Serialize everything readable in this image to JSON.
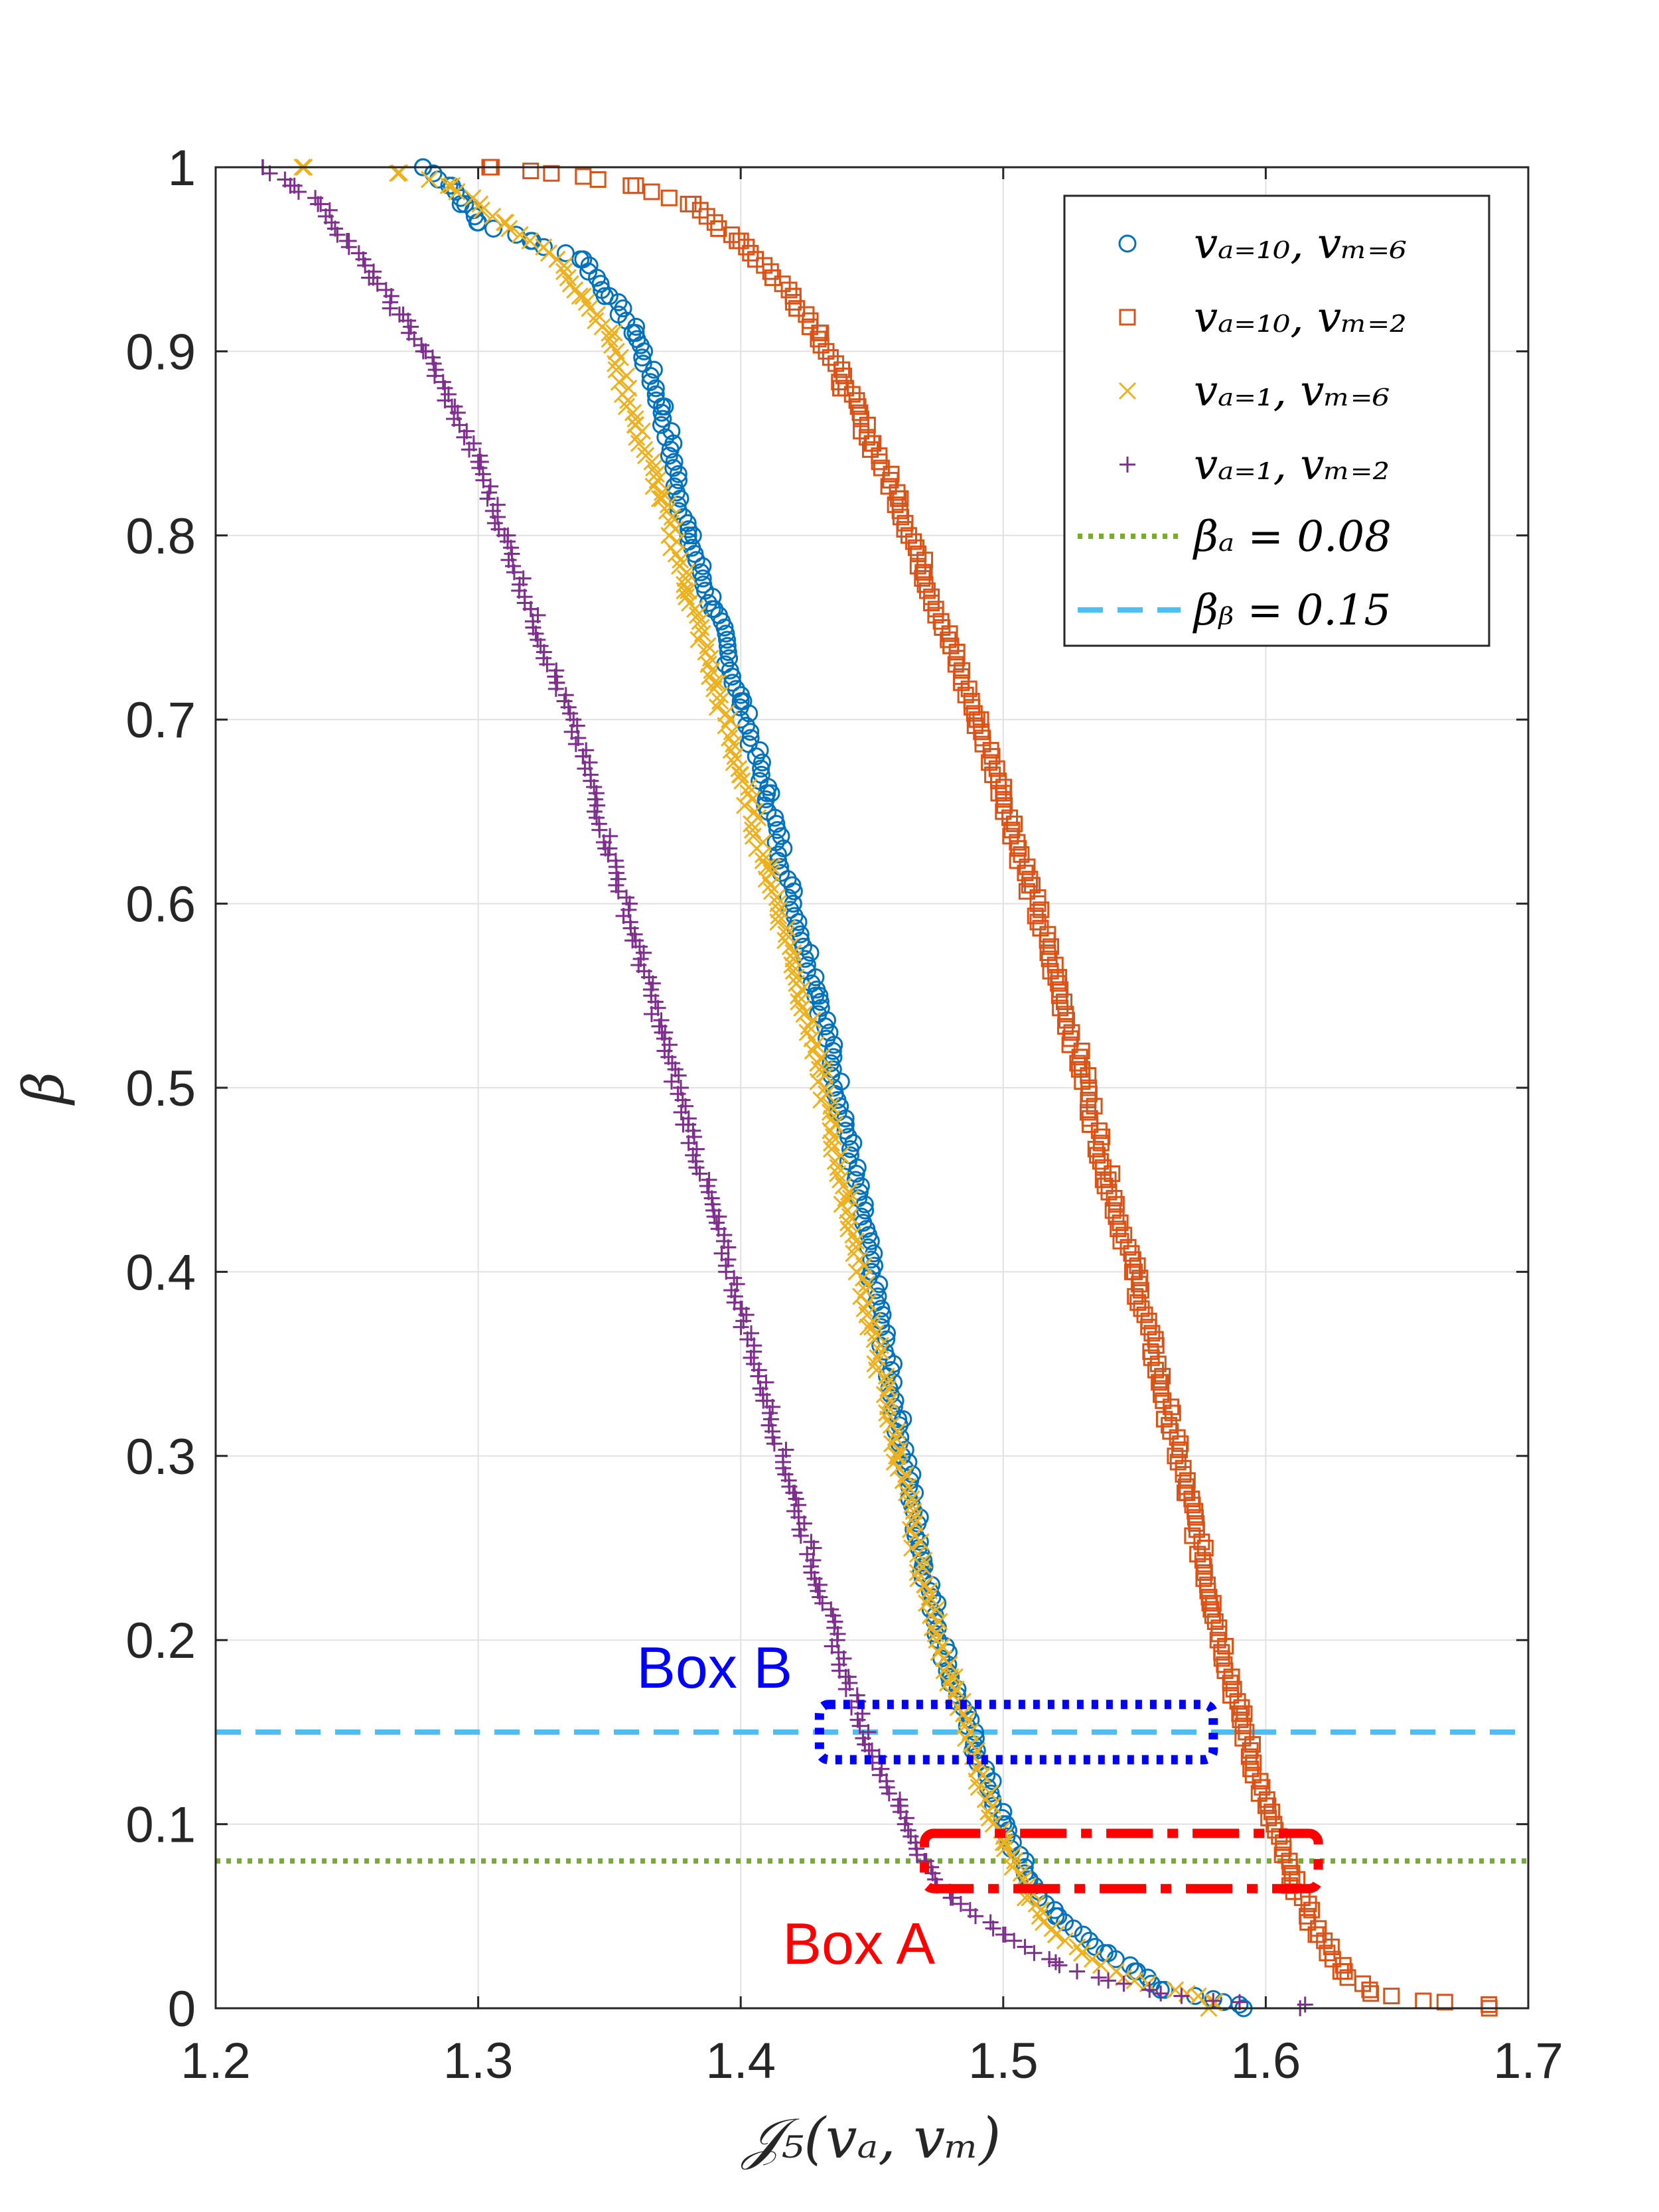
{
  "chart_data": {
    "type": "scatter",
    "title": "",
    "xlabel": "𝒥₅(vₐ, vₘ)",
    "ylabel": "β",
    "xlim": [
      1.2,
      1.7
    ],
    "ylim": [
      0,
      1
    ],
    "x_ticks": [
      "1.2",
      "1.3",
      "1.4",
      "1.5",
      "1.6",
      "1.7"
    ],
    "y_ticks": [
      "0",
      "0.1",
      "0.2",
      "0.3",
      "0.4",
      "0.5",
      "0.6",
      "0.7",
      "0.8",
      "0.9",
      "1"
    ],
    "grid": true,
    "legend_position": "top-right",
    "series": [
      {
        "name": "v_{a=10}, v_{m=6}",
        "label": "𝑣ₐ₌₁₀, 𝑣ₘ₌₆",
        "marker": "circle",
        "color": "#0072BD",
        "curve": [
          [
            1.279,
            1.0
          ],
          [
            1.29,
            0.99
          ],
          [
            1.295,
            0.98
          ],
          [
            1.3,
            0.97
          ],
          [
            1.32,
            0.96
          ],
          [
            1.34,
            0.95
          ],
          [
            1.35,
            0.93
          ],
          [
            1.36,
            0.91
          ],
          [
            1.37,
            0.87
          ],
          [
            1.38,
            0.8
          ],
          [
            1.39,
            0.76
          ],
          [
            1.4,
            0.71
          ],
          [
            1.41,
            0.66
          ],
          [
            1.42,
            0.6
          ],
          [
            1.43,
            0.55
          ],
          [
            1.44,
            0.48
          ],
          [
            1.45,
            0.4
          ],
          [
            1.46,
            0.32
          ],
          [
            1.47,
            0.24
          ],
          [
            1.48,
            0.18
          ],
          [
            1.49,
            0.14
          ],
          [
            1.5,
            0.1
          ],
          [
            1.51,
            0.07
          ],
          [
            1.52,
            0.05
          ],
          [
            1.54,
            0.03
          ],
          [
            1.55,
            0.02
          ],
          [
            1.56,
            0.01
          ],
          [
            1.58,
            0.005
          ],
          [
            1.59,
            0.002
          ]
        ]
      },
      {
        "name": "v_{a=10}, v_{m=2}",
        "label": "𝑣ₐ₌₁₀, 𝑣ₘ₌₂",
        "marker": "square",
        "color": "#D95319",
        "curve": [
          [
            1.305,
            1.0
          ],
          [
            1.32,
            0.998
          ],
          [
            1.34,
            0.995
          ],
          [
            1.36,
            0.99
          ],
          [
            1.38,
            0.98
          ],
          [
            1.4,
            0.96
          ],
          [
            1.42,
            0.93
          ],
          [
            1.43,
            0.91
          ],
          [
            1.44,
            0.88
          ],
          [
            1.45,
            0.85
          ],
          [
            1.46,
            0.82
          ],
          [
            1.47,
            0.78
          ],
          [
            1.48,
            0.74
          ],
          [
            1.49,
            0.7
          ],
          [
            1.5,
            0.66
          ],
          [
            1.51,
            0.61
          ],
          [
            1.52,
            0.56
          ],
          [
            1.53,
            0.51
          ],
          [
            1.54,
            0.45
          ],
          [
            1.55,
            0.4
          ],
          [
            1.56,
            0.34
          ],
          [
            1.57,
            0.28
          ],
          [
            1.58,
            0.22
          ],
          [
            1.59,
            0.16
          ],
          [
            1.6,
            0.11
          ],
          [
            1.61,
            0.07
          ],
          [
            1.62,
            0.04
          ],
          [
            1.63,
            0.02
          ],
          [
            1.64,
            0.008
          ],
          [
            1.66,
            0.004
          ],
          [
            1.685,
            0.002
          ]
        ]
      },
      {
        "name": "v_{a=1}, v_{m=6}",
        "label": "𝑣ₐ₌₁, 𝑣ₘ₌₆",
        "marker": "x",
        "color": "#EDB120",
        "curve": [
          [
            1.233,
            1.0
          ],
          [
            1.27,
            0.997
          ],
          [
            1.29,
            0.99
          ],
          [
            1.31,
            0.97
          ],
          [
            1.33,
            0.95
          ],
          [
            1.34,
            0.93
          ],
          [
            1.35,
            0.91
          ],
          [
            1.36,
            0.86
          ],
          [
            1.37,
            0.82
          ],
          [
            1.38,
            0.77
          ],
          [
            1.39,
            0.72
          ],
          [
            1.4,
            0.67
          ],
          [
            1.41,
            0.62
          ],
          [
            1.42,
            0.57
          ],
          [
            1.43,
            0.51
          ],
          [
            1.44,
            0.44
          ],
          [
            1.45,
            0.37
          ],
          [
            1.46,
            0.3
          ],
          [
            1.47,
            0.23
          ],
          [
            1.48,
            0.18
          ],
          [
            1.49,
            0.13
          ],
          [
            1.5,
            0.09
          ],
          [
            1.51,
            0.06
          ],
          [
            1.52,
            0.04
          ],
          [
            1.53,
            0.03
          ],
          [
            1.55,
            0.015
          ],
          [
            1.57,
            0.008
          ],
          [
            1.58,
            0.003
          ]
        ]
      },
      {
        "name": "v_{a=1}, v_{m=2}",
        "label": "𝑣ₐ₌₁, 𝑣ₘ₌₂",
        "marker": "plus",
        "color": "#7E2F8E",
        "curve": [
          [
            1.218,
            1.0
          ],
          [
            1.23,
            0.99
          ],
          [
            1.24,
            0.98
          ],
          [
            1.25,
            0.96
          ],
          [
            1.26,
            0.94
          ],
          [
            1.27,
            0.92
          ],
          [
            1.28,
            0.9
          ],
          [
            1.29,
            0.87
          ],
          [
            1.3,
            0.84
          ],
          [
            1.31,
            0.8
          ],
          [
            1.32,
            0.76
          ],
          [
            1.33,
            0.72
          ],
          [
            1.34,
            0.68
          ],
          [
            1.35,
            0.63
          ],
          [
            1.36,
            0.58
          ],
          [
            1.37,
            0.53
          ],
          [
            1.38,
            0.48
          ],
          [
            1.39,
            0.43
          ],
          [
            1.4,
            0.38
          ],
          [
            1.41,
            0.33
          ],
          [
            1.42,
            0.28
          ],
          [
            1.43,
            0.23
          ],
          [
            1.44,
            0.18
          ],
          [
            1.45,
            0.14
          ],
          [
            1.46,
            0.11
          ],
          [
            1.47,
            0.08
          ],
          [
            1.48,
            0.06
          ],
          [
            1.5,
            0.04
          ],
          [
            1.52,
            0.025
          ],
          [
            1.54,
            0.015
          ],
          [
            1.56,
            0.008
          ],
          [
            1.58,
            0.004
          ],
          [
            1.615,
            0.002
          ]
        ]
      }
    ],
    "reference_lines": [
      {
        "name": "β_a = 0.08",
        "label": "𝛽ₐ = 0.08",
        "y": 0.08,
        "style": "dotted",
        "color": "#77AC30"
      },
      {
        "name": "β_b = 0.15",
        "label": "𝛽ᵦ = 0.15",
        "y": 0.15,
        "style": "dashed",
        "color": "#4DBEEE"
      }
    ],
    "annotations": [
      {
        "text": "Box B",
        "color": "#0000FF",
        "style": "dotted",
        "x_range": [
          1.43,
          1.58
        ],
        "y_range": [
          0.135,
          0.165
        ],
        "text_x": 1.39,
        "text_y": 0.185
      },
      {
        "text": "Box A",
        "color": "#FF0000",
        "style": "dashdot",
        "x_range": [
          1.47,
          1.62
        ],
        "y_range": [
          0.065,
          0.095
        ],
        "text_x": 1.445,
        "text_y": 0.035
      }
    ]
  }
}
